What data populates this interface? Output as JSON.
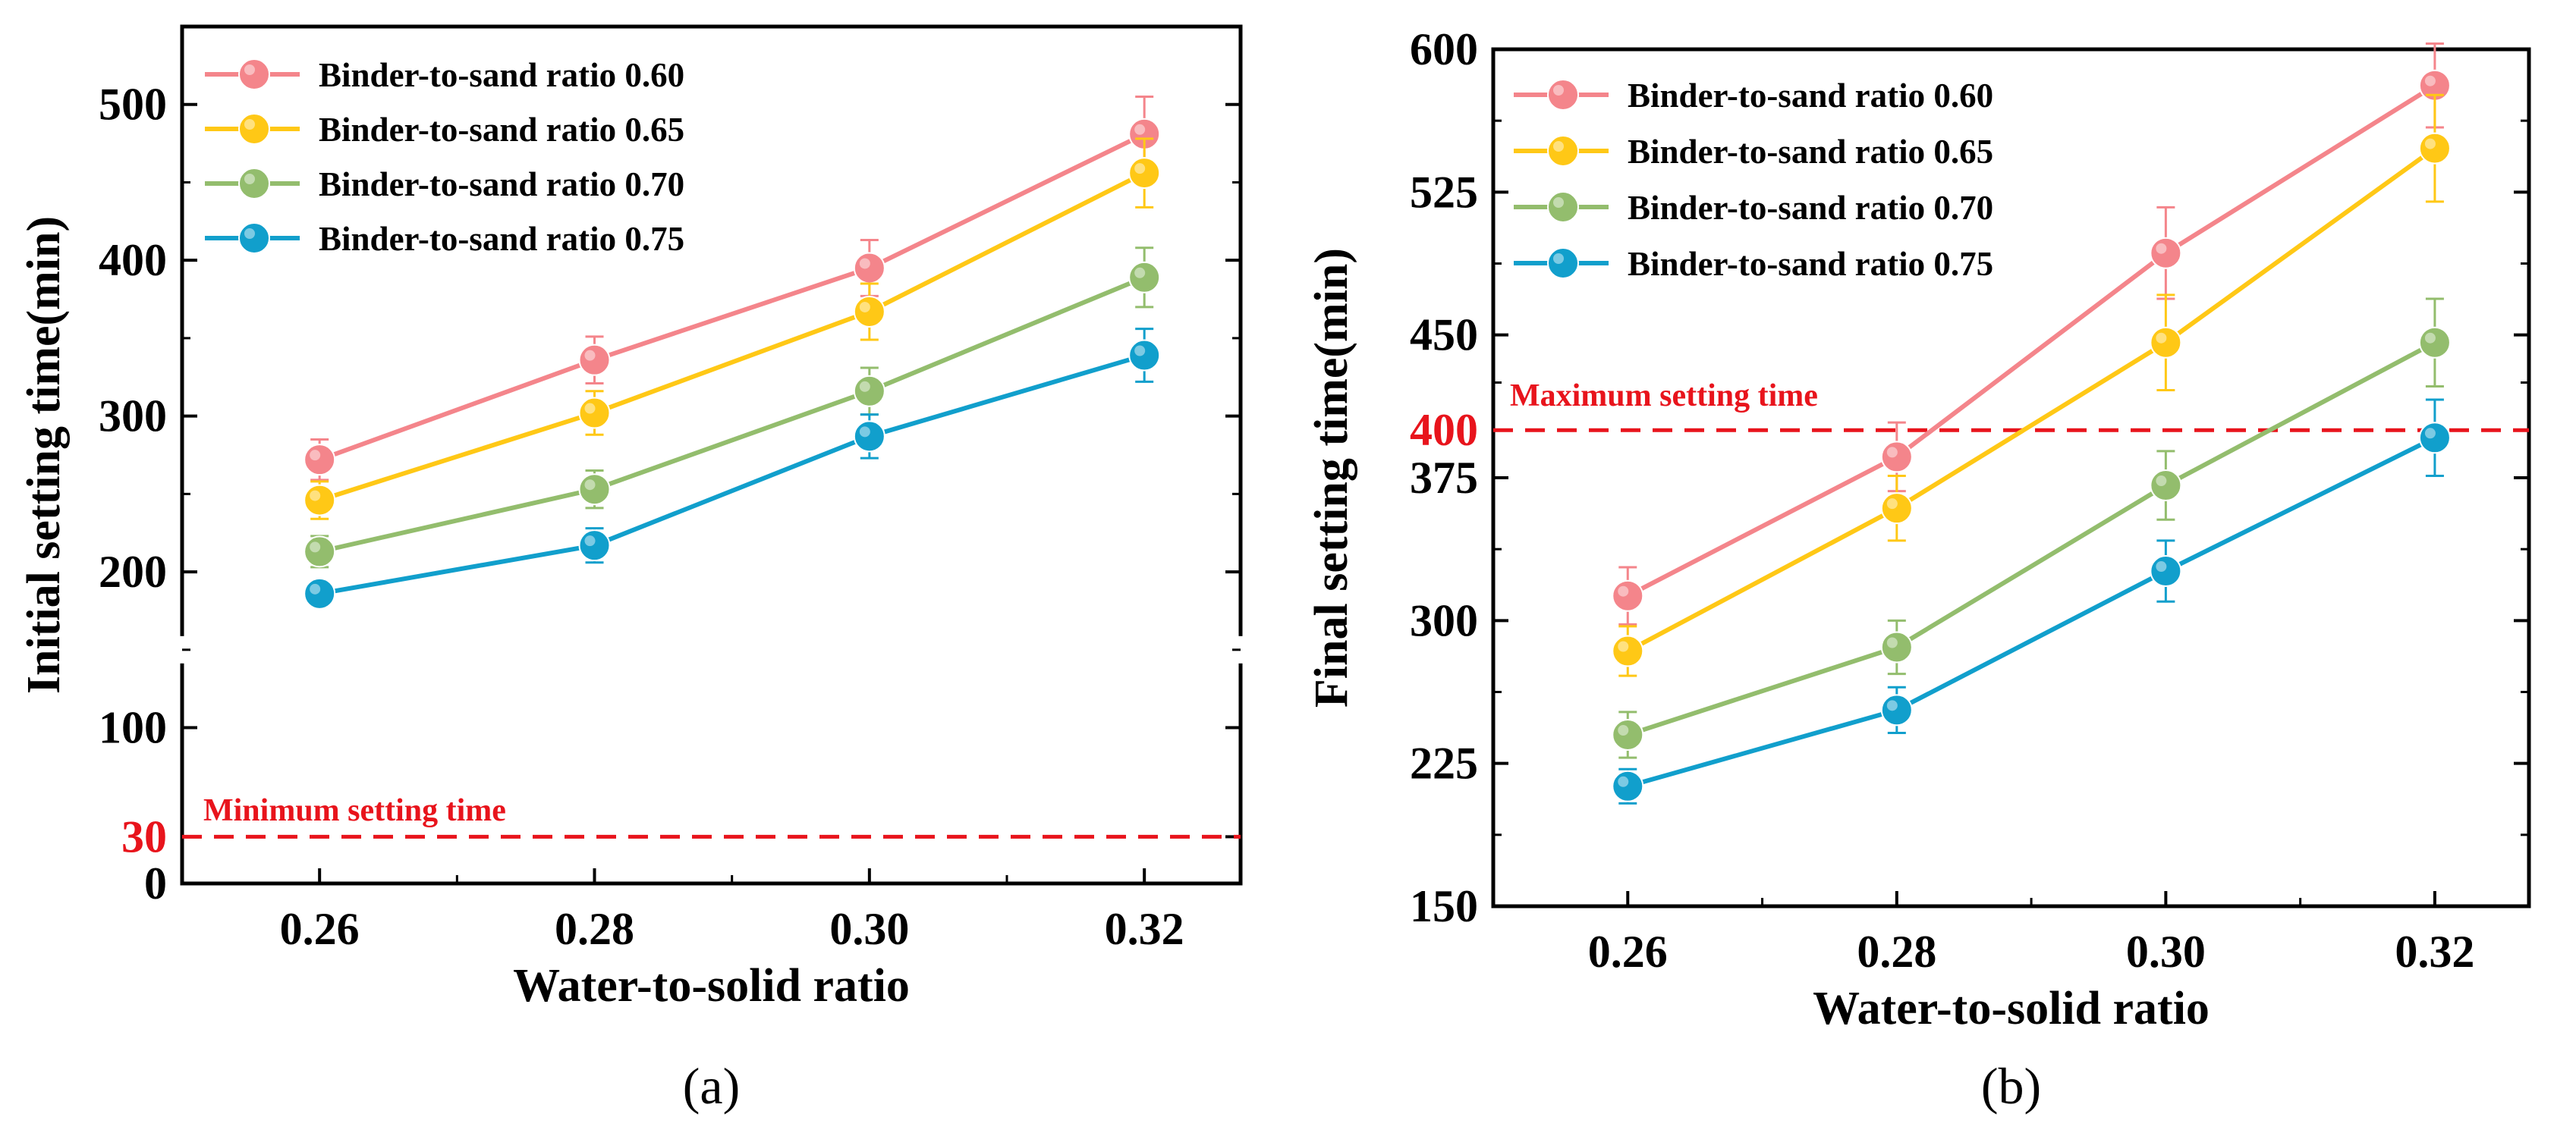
{
  "chart_data": [
    {
      "type": "line",
      "panel_label": "(a)",
      "xlabel": "Water-to-solid ratio",
      "ylabel": "Initial setting time(min)",
      "categories": [
        "0.26",
        "0.28",
        "0.30",
        "0.32"
      ],
      "x": [
        0.26,
        0.28,
        0.3,
        0.32
      ],
      "xlim": [
        0.25,
        0.327
      ],
      "ylim": [
        0,
        550
      ],
      "y_axis_broken": true,
      "yticks": [
        0,
        30,
        100,
        200,
        300,
        400,
        500
      ],
      "ytick_labels": [
        "0",
        "30",
        "100",
        "200",
        "300",
        "400",
        "500"
      ],
      "highlighted_ytick": "30",
      "legend_position": "top-left",
      "grid": false,
      "series": [
        {
          "name": "Binder-to-sand ratio 0.60",
          "color": "#f4858b",
          "values": [
            272,
            336,
            395,
            481
          ],
          "errors": [
            13,
            15,
            18,
            24
          ]
        },
        {
          "name": "Binder-to-sand ratio 0.65",
          "color": "#ffc816",
          "values": [
            246,
            302,
            367,
            456
          ],
          "errors": [
            12,
            14,
            18,
            22
          ]
        },
        {
          "name": "Binder-to-sand ratio 0.70",
          "color": "#93bd6d",
          "values": [
            213,
            253,
            316,
            389
          ],
          "errors": [
            10,
            12,
            15,
            19
          ]
        },
        {
          "name": "Binder-to-sand ratio 0.75",
          "color": "#119fcc",
          "values": [
            186,
            217,
            287,
            339
          ],
          "errors": [
            7,
            11,
            14,
            17
          ]
        }
      ],
      "reference_line": {
        "label": "Minimum setting time",
        "value": 30,
        "color": "#e8141c"
      }
    },
    {
      "type": "line",
      "panel_label": "(b)",
      "xlabel": "Water-to-solid ratio",
      "ylabel": "Final setting time(min)",
      "categories": [
        "0.26",
        "0.28",
        "0.30",
        "0.32"
      ],
      "x": [
        0.26,
        0.28,
        0.3,
        0.32
      ],
      "xlim": [
        0.25,
        0.327
      ],
      "ylim": [
        150,
        600
      ],
      "yticks": [
        150,
        225,
        300,
        375,
        400,
        450,
        525,
        600
      ],
      "ytick_labels": [
        "150",
        "225",
        "300",
        "375",
        "400",
        "450",
        "525",
        "600"
      ],
      "highlighted_ytick": "400",
      "legend_position": "top-left",
      "grid": false,
      "series": [
        {
          "name": "Binder-to-sand ratio 0.60",
          "color": "#f4858b",
          "values": [
            313,
            386,
            493,
            581
          ],
          "errors": [
            15,
            18,
            24,
            22
          ]
        },
        {
          "name": "Binder-to-sand ratio 0.65",
          "color": "#ffc816",
          "values": [
            284,
            359,
            446,
            548
          ],
          "errors": [
            13,
            17,
            25,
            28
          ]
        },
        {
          "name": "Binder-to-sand ratio 0.70",
          "color": "#93bd6d",
          "values": [
            240,
            286,
            371,
            446
          ],
          "errors": [
            12,
            14,
            18,
            23
          ]
        },
        {
          "name": "Binder-to-sand ratio 0.75",
          "color": "#119fcc",
          "values": [
            213,
            253,
            326,
            396
          ],
          "errors": [
            9,
            12,
            16,
            20
          ]
        }
      ],
      "reference_line": {
        "label": "Maximum setting time",
        "value": 400,
        "color": "#e8141c"
      }
    }
  ]
}
